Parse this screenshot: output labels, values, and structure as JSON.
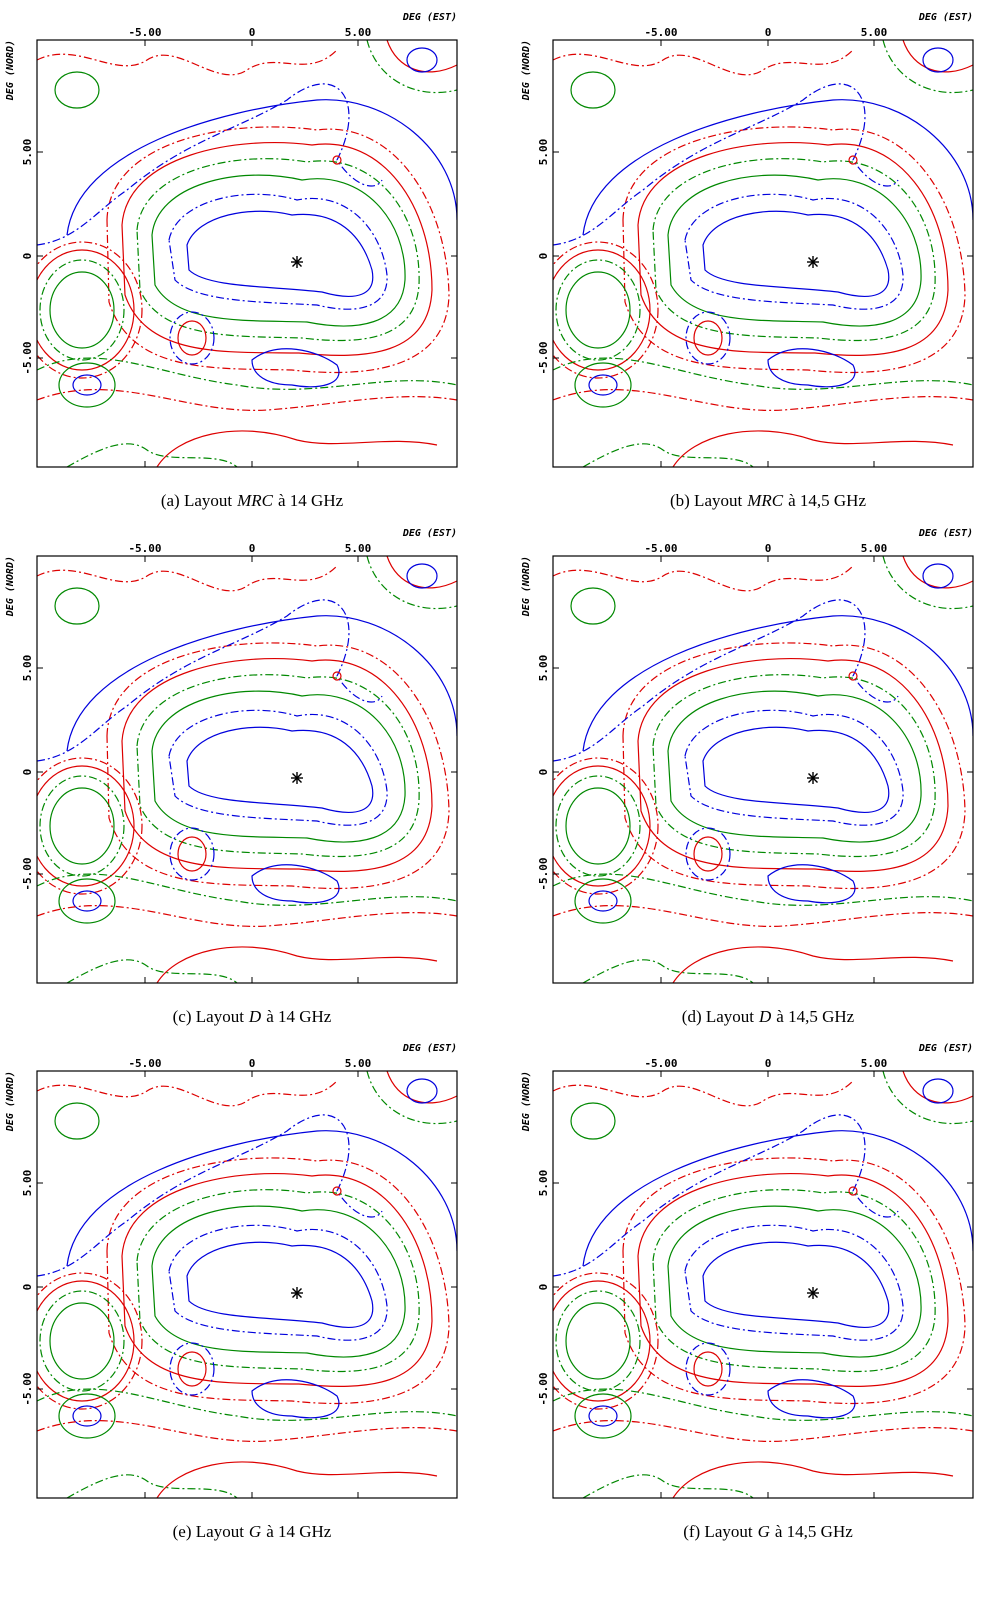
{
  "axis": {
    "x_label": "DEG (EST)",
    "y_label": "DEG (NORD)",
    "x_ticks": [
      "-5.00",
      "0",
      "5.00"
    ],
    "y_ticks": [
      "5.00",
      "0",
      "-5.00"
    ]
  },
  "panels": [
    {
      "tag": "(a) Layout",
      "layout": "MRC",
      "freq": "à 14 GHz"
    },
    {
      "tag": "(b) Layout",
      "layout": "MRC",
      "freq": "à 14,5 GHz"
    },
    {
      "tag": "(c) Layout",
      "layout": "D",
      "freq": "à 14 GHz"
    },
    {
      "tag": "(d) Layout",
      "layout": "D",
      "freq": "à 14,5 GHz"
    },
    {
      "tag": "(e) Layout",
      "layout": "G",
      "freq": "à 14 GHz"
    },
    {
      "tag": "(f) Layout",
      "layout": "G",
      "freq": "à 14,5 GHz"
    }
  ]
}
